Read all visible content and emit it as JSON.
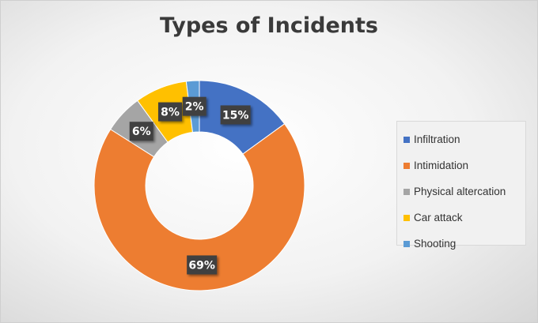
{
  "chart_data": {
    "type": "pie",
    "subtype": "donut",
    "title": "Types of Incidents",
    "categories": [
      "Infiltration",
      "Intimidation",
      "Physical altercation",
      "Car attack",
      "Shooting"
    ],
    "values": [
      15,
      69,
      6,
      8,
      2
    ],
    "labels": [
      "15%",
      "69%",
      "6%",
      "8%",
      "2%"
    ],
    "colors": [
      "#4472C4",
      "#ED7D31",
      "#A5A5A5",
      "#FFC000",
      "#5B9BD5"
    ],
    "legend_position": "right"
  }
}
